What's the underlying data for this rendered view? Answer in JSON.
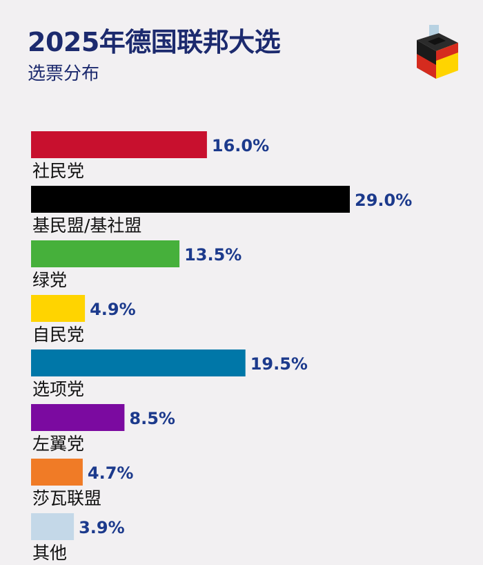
{
  "header": {
    "title": "2025年德国联邦大选",
    "subtitle": "选票分布"
  },
  "logo_icon": "ballot-box-icon",
  "chart_data": {
    "type": "bar",
    "orientation": "horizontal",
    "title": "2025年德国联邦大选",
    "subtitle": "选票分布",
    "xlabel": "",
    "ylabel": "",
    "unit": "%",
    "grid": false,
    "legend": "none",
    "categories": [
      "社民党",
      "基民盟/基社盟",
      "绿党",
      "自民党",
      "选项党",
      "左翼党",
      "莎瓦联盟",
      "其他"
    ],
    "values": [
      16.0,
      29.0,
      13.5,
      4.9,
      19.5,
      8.5,
      4.7,
      3.9
    ],
    "value_labels": [
      "16.0%",
      "29.0%",
      "13.5%",
      "4.9%",
      "19.5%",
      "8.5%",
      "4.7%",
      "3.9%"
    ],
    "colors": [
      "#c8102e",
      "#000000",
      "#46b03b",
      "#ffd400",
      "#0077a8",
      "#7b0aa0",
      "#f07b26",
      "#c4d8e8"
    ],
    "xlim": [
      0,
      29.0
    ]
  }
}
